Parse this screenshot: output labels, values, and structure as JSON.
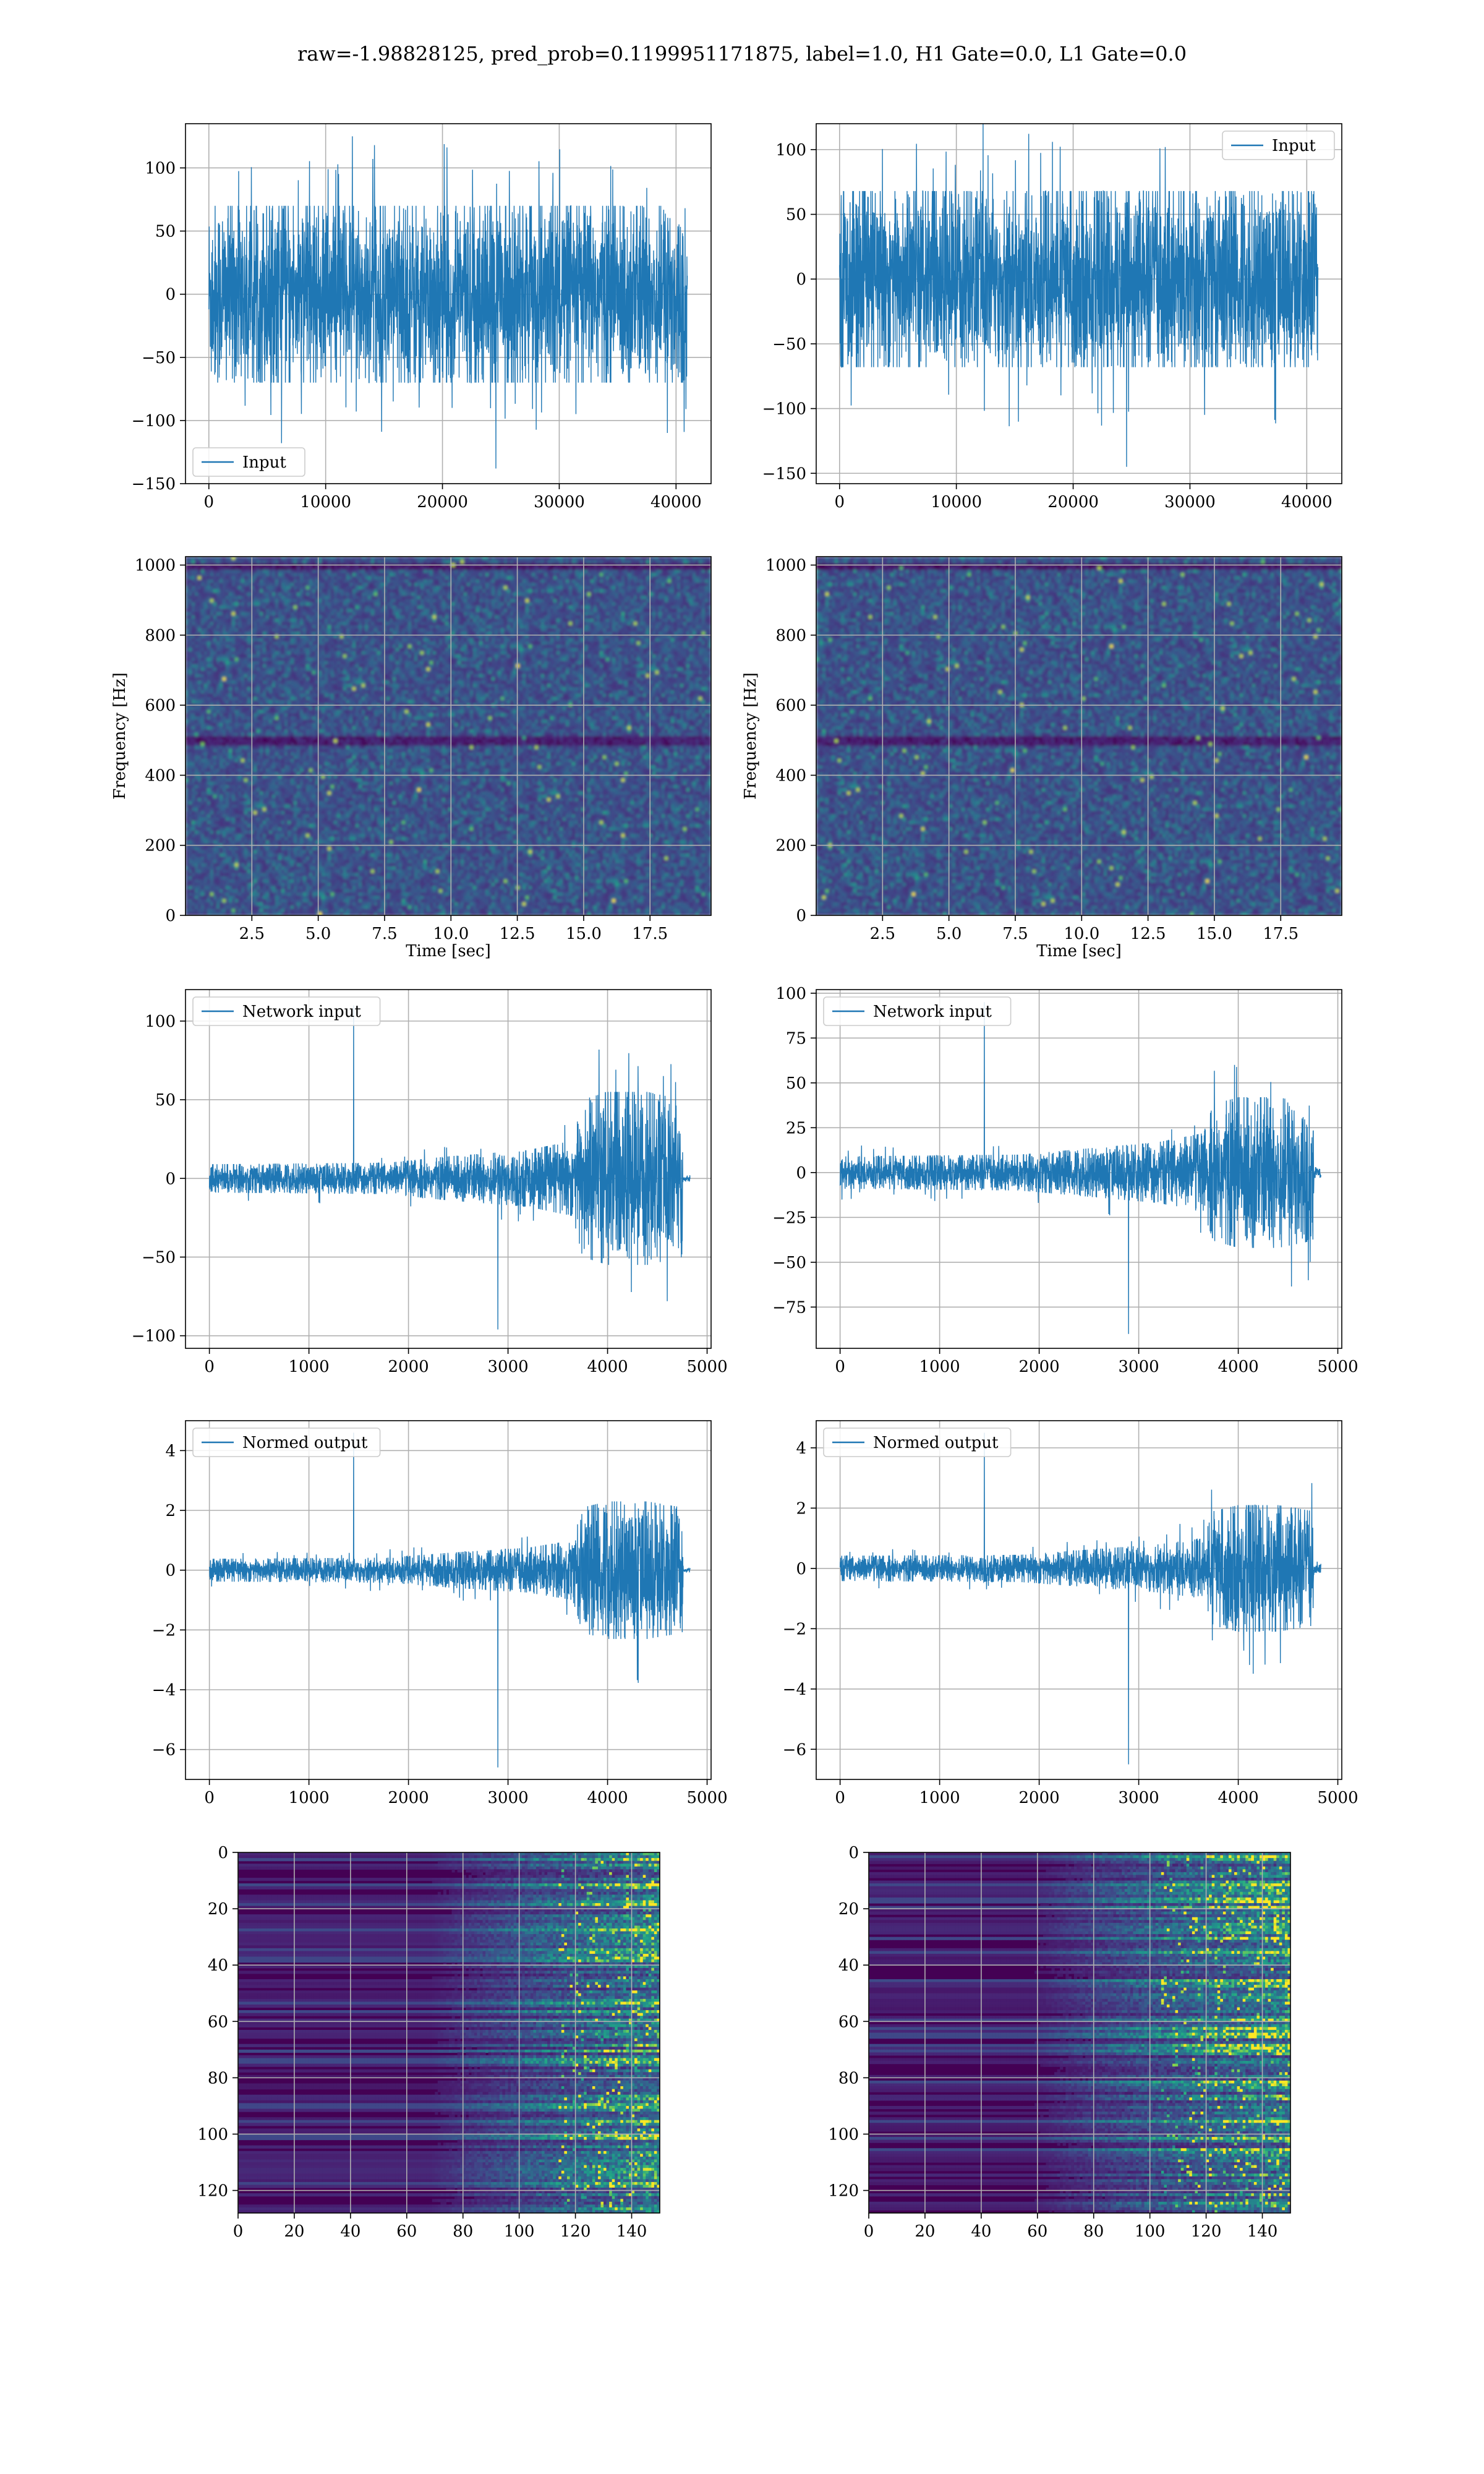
{
  "figure": {
    "title": "raw=-1.98828125, pred_prob=0.1199951171875, label=1.0, H1 Gate=0.0, L1 Gate=0.0"
  },
  "colors": {
    "line": "#1f77b4",
    "grid": "#b0b0b0",
    "spine": "#000000",
    "viridis_dark": "#440154",
    "viridis_mid": "#21918c",
    "viridis_bright": "#fde725"
  },
  "chart_data": [
    {
      "id": "raw-left",
      "type": "line",
      "legend": "Input",
      "legend_loc": "lower-left",
      "xlim": [
        -2000,
        43000
      ],
      "ylim": [
        -150,
        135
      ],
      "xticks": [
        0,
        10000,
        20000,
        30000,
        40000
      ],
      "yticks": [
        -150,
        -100,
        -50,
        0,
        50,
        100
      ],
      "xticklabels": [
        "0",
        "10000",
        "20000",
        "30000",
        "40000"
      ],
      "yticklabels": [
        "−150",
        "−100",
        "−50",
        "0",
        "50",
        "100"
      ],
      "series": [
        {
          "kind": "noise",
          "x_start": 0,
          "x_end": 40960,
          "envelope": [
            [
              0,
              70
            ],
            [
              40960,
              70
            ]
          ],
          "spike_max": 125,
          "spike_min": -138
        }
      ]
    },
    {
      "id": "raw-right",
      "type": "line",
      "legend": "Input",
      "legend_loc": "upper-right",
      "xlim": [
        -2000,
        43000
      ],
      "ylim": [
        -158,
        120
      ],
      "xticks": [
        0,
        10000,
        20000,
        30000,
        40000
      ],
      "yticks": [
        -150,
        -100,
        -50,
        0,
        50,
        100
      ],
      "xticklabels": [
        "0",
        "10000",
        "20000",
        "30000",
        "40000"
      ],
      "yticklabels": [
        "−150",
        "−100",
        "−50",
        "0",
        "50",
        "100"
      ],
      "series": [
        {
          "kind": "noise",
          "x_start": 0,
          "x_end": 40960,
          "envelope": [
            [
              0,
              68
            ],
            [
              40960,
              68
            ]
          ],
          "spike_max": 122,
          "spike_min": -145
        }
      ]
    },
    {
      "id": "spec-left",
      "type": "heatmap",
      "xlabel": "Time [sec]",
      "ylabel": "Frequency [Hz]",
      "xlim": [
        0,
        19.8
      ],
      "ylim": [
        0,
        1024
      ],
      "xticks": [
        2.5,
        5.0,
        7.5,
        10.0,
        12.5,
        15.0,
        17.5
      ],
      "yticks": [
        0,
        200,
        400,
        600,
        800,
        1000
      ],
      "xticklabels": [
        "2.5",
        "5.0",
        "7.5",
        "10.0",
        "12.5",
        "15.0",
        "17.5"
      ],
      "yticklabels": [
        "0",
        "200",
        "400",
        "600",
        "800",
        "1000"
      ],
      "dark_band_hz": [
        500,
        1000
      ]
    },
    {
      "id": "spec-right",
      "type": "heatmap",
      "xlabel": "Time [sec]",
      "ylabel": "Frequency [Hz]",
      "xlim": [
        0,
        19.8
      ],
      "ylim": [
        0,
        1024
      ],
      "xticks": [
        2.5,
        5.0,
        7.5,
        10.0,
        12.5,
        15.0,
        17.5
      ],
      "yticks": [
        0,
        200,
        400,
        600,
        800,
        1000
      ],
      "xticklabels": [
        "2.5",
        "5.0",
        "7.5",
        "10.0",
        "12.5",
        "15.0",
        "17.5"
      ],
      "yticklabels": [
        "0",
        "200",
        "400",
        "600",
        "800",
        "1000"
      ],
      "dark_band_hz": [
        500,
        1000
      ]
    },
    {
      "id": "net-left",
      "type": "line",
      "legend": "Network input",
      "legend_loc": "upper-left",
      "xlim": [
        -240,
        5040
      ],
      "ylim": [
        -108,
        120
      ],
      "xticks": [
        0,
        1000,
        2000,
        3000,
        4000,
        5000
      ],
      "yticks": [
        -100,
        -50,
        0,
        50,
        100
      ],
      "xticklabels": [
        "0",
        "1000",
        "2000",
        "3000",
        "4000",
        "5000"
      ],
      "yticklabels": [
        "−100",
        "−50",
        "0",
        "50",
        "100"
      ],
      "series": [
        {
          "kind": "noise",
          "x_start": 0,
          "x_end": 4830,
          "envelope": [
            [
              0,
              9
            ],
            [
              1800,
              10
            ],
            [
              2400,
              14
            ],
            [
              3200,
              18
            ],
            [
              3650,
              24
            ],
            [
              3750,
              50
            ],
            [
              4000,
              55
            ],
            [
              4400,
              55
            ],
            [
              4750,
              50
            ],
            [
              4760,
              2
            ],
            [
              4830,
              2
            ]
          ],
          "spike_max": 110,
          "spike_min": -96
        }
      ]
    },
    {
      "id": "net-right",
      "type": "line",
      "legend": "Network input",
      "legend_loc": "upper-left",
      "xlim": [
        -240,
        5040
      ],
      "ylim": [
        -98,
        102
      ],
      "xticks": [
        0,
        1000,
        2000,
        3000,
        4000,
        5000
      ],
      "yticks": [
        -75,
        -50,
        -25,
        0,
        25,
        50,
        75,
        100
      ],
      "xticklabels": [
        "0",
        "1000",
        "2000",
        "3000",
        "4000",
        "5000"
      ],
      "yticklabels": [
        "−75",
        "−50",
        "−25",
        "0",
        "25",
        "50",
        "75",
        "100"
      ],
      "series": [
        {
          "kind": "noise",
          "x_start": 0,
          "x_end": 4830,
          "envelope": [
            [
              0,
              9
            ],
            [
              1800,
              10
            ],
            [
              2400,
              13
            ],
            [
              3200,
              17
            ],
            [
              3650,
              22
            ],
            [
              3750,
              38
            ],
            [
              4000,
              42
            ],
            [
              4400,
              42
            ],
            [
              4750,
              38
            ],
            [
              4760,
              3
            ],
            [
              4830,
              3
            ]
          ],
          "spike_max": 95,
          "spike_min": -90
        }
      ]
    },
    {
      "id": "norm-left",
      "type": "line",
      "legend": "Normed output",
      "legend_loc": "upper-left",
      "xlim": [
        -240,
        5040
      ],
      "ylim": [
        -7.0,
        5.0
      ],
      "xticks": [
        0,
        1000,
        2000,
        3000,
        4000,
        5000
      ],
      "yticks": [
        -6,
        -4,
        -2,
        0,
        2,
        4
      ],
      "xticklabels": [
        "0",
        "1000",
        "2000",
        "3000",
        "4000",
        "5000"
      ],
      "yticklabels": [
        "−6",
        "−4",
        "−2",
        "0",
        "2",
        "4"
      ],
      "series": [
        {
          "kind": "noise",
          "x_start": 0,
          "x_end": 4830,
          "envelope": [
            [
              0,
              0.38
            ],
            [
              1800,
              0.42
            ],
            [
              2400,
              0.58
            ],
            [
              3200,
              0.75
            ],
            [
              3650,
              1.0
            ],
            [
              3750,
              2.1
            ],
            [
              4000,
              2.3
            ],
            [
              4400,
              2.3
            ],
            [
              4750,
              2.1
            ],
            [
              4760,
              0.08
            ],
            [
              4830,
              0.08
            ]
          ],
          "spike_max": 4.6,
          "spike_min": -6.6
        }
      ]
    },
    {
      "id": "norm-right",
      "type": "line",
      "legend": "Normed output",
      "legend_loc": "upper-left",
      "xlim": [
        -240,
        5040
      ],
      "ylim": [
        -7.0,
        4.9
      ],
      "xticks": [
        0,
        1000,
        2000,
        3000,
        4000,
        5000
      ],
      "yticks": [
        -6,
        -4,
        -2,
        0,
        2,
        4
      ],
      "xticklabels": [
        "0",
        "1000",
        "2000",
        "3000",
        "4000",
        "5000"
      ],
      "yticklabels": [
        "−6",
        "−4",
        "−2",
        "0",
        "2",
        "4"
      ],
      "series": [
        {
          "kind": "noise",
          "x_start": 0,
          "x_end": 4830,
          "envelope": [
            [
              0,
              0.42
            ],
            [
              1800,
              0.45
            ],
            [
              2400,
              0.6
            ],
            [
              3200,
              0.8
            ],
            [
              3650,
              1.0
            ],
            [
              3750,
              1.9
            ],
            [
              4000,
              2.1
            ],
            [
              4400,
              2.1
            ],
            [
              4750,
              1.9
            ],
            [
              4760,
              0.15
            ],
            [
              4830,
              0.15
            ]
          ],
          "spike_max": 4.5,
          "spike_min": -6.5
        }
      ]
    },
    {
      "id": "feat-left",
      "type": "heatmap",
      "xlim": [
        0,
        150
      ],
      "ylim": [
        128,
        0
      ],
      "xticks": [
        0,
        20,
        40,
        60,
        80,
        100,
        120,
        140
      ],
      "yticks": [
        0,
        20,
        40,
        60,
        80,
        100,
        120
      ],
      "xticklabels": [
        "0",
        "20",
        "40",
        "60",
        "80",
        "100",
        "120",
        "140"
      ],
      "yticklabels": [
        "0",
        "20",
        "40",
        "60",
        "80",
        "100",
        "120"
      ],
      "activity_start_col": 98
    },
    {
      "id": "feat-right",
      "type": "heatmap",
      "xlim": [
        0,
        150
      ],
      "ylim": [
        128,
        0
      ],
      "xticks": [
        0,
        20,
        40,
        60,
        80,
        100,
        120,
        140
      ],
      "yticks": [
        0,
        20,
        40,
        60,
        80,
        100,
        120
      ],
      "xticklabels": [
        "0",
        "20",
        "40",
        "60",
        "80",
        "100",
        "120",
        "140"
      ],
      "yticklabels": [
        "0",
        "20",
        "40",
        "60",
        "80",
        "100",
        "120"
      ],
      "activity_start_col": 88
    }
  ]
}
